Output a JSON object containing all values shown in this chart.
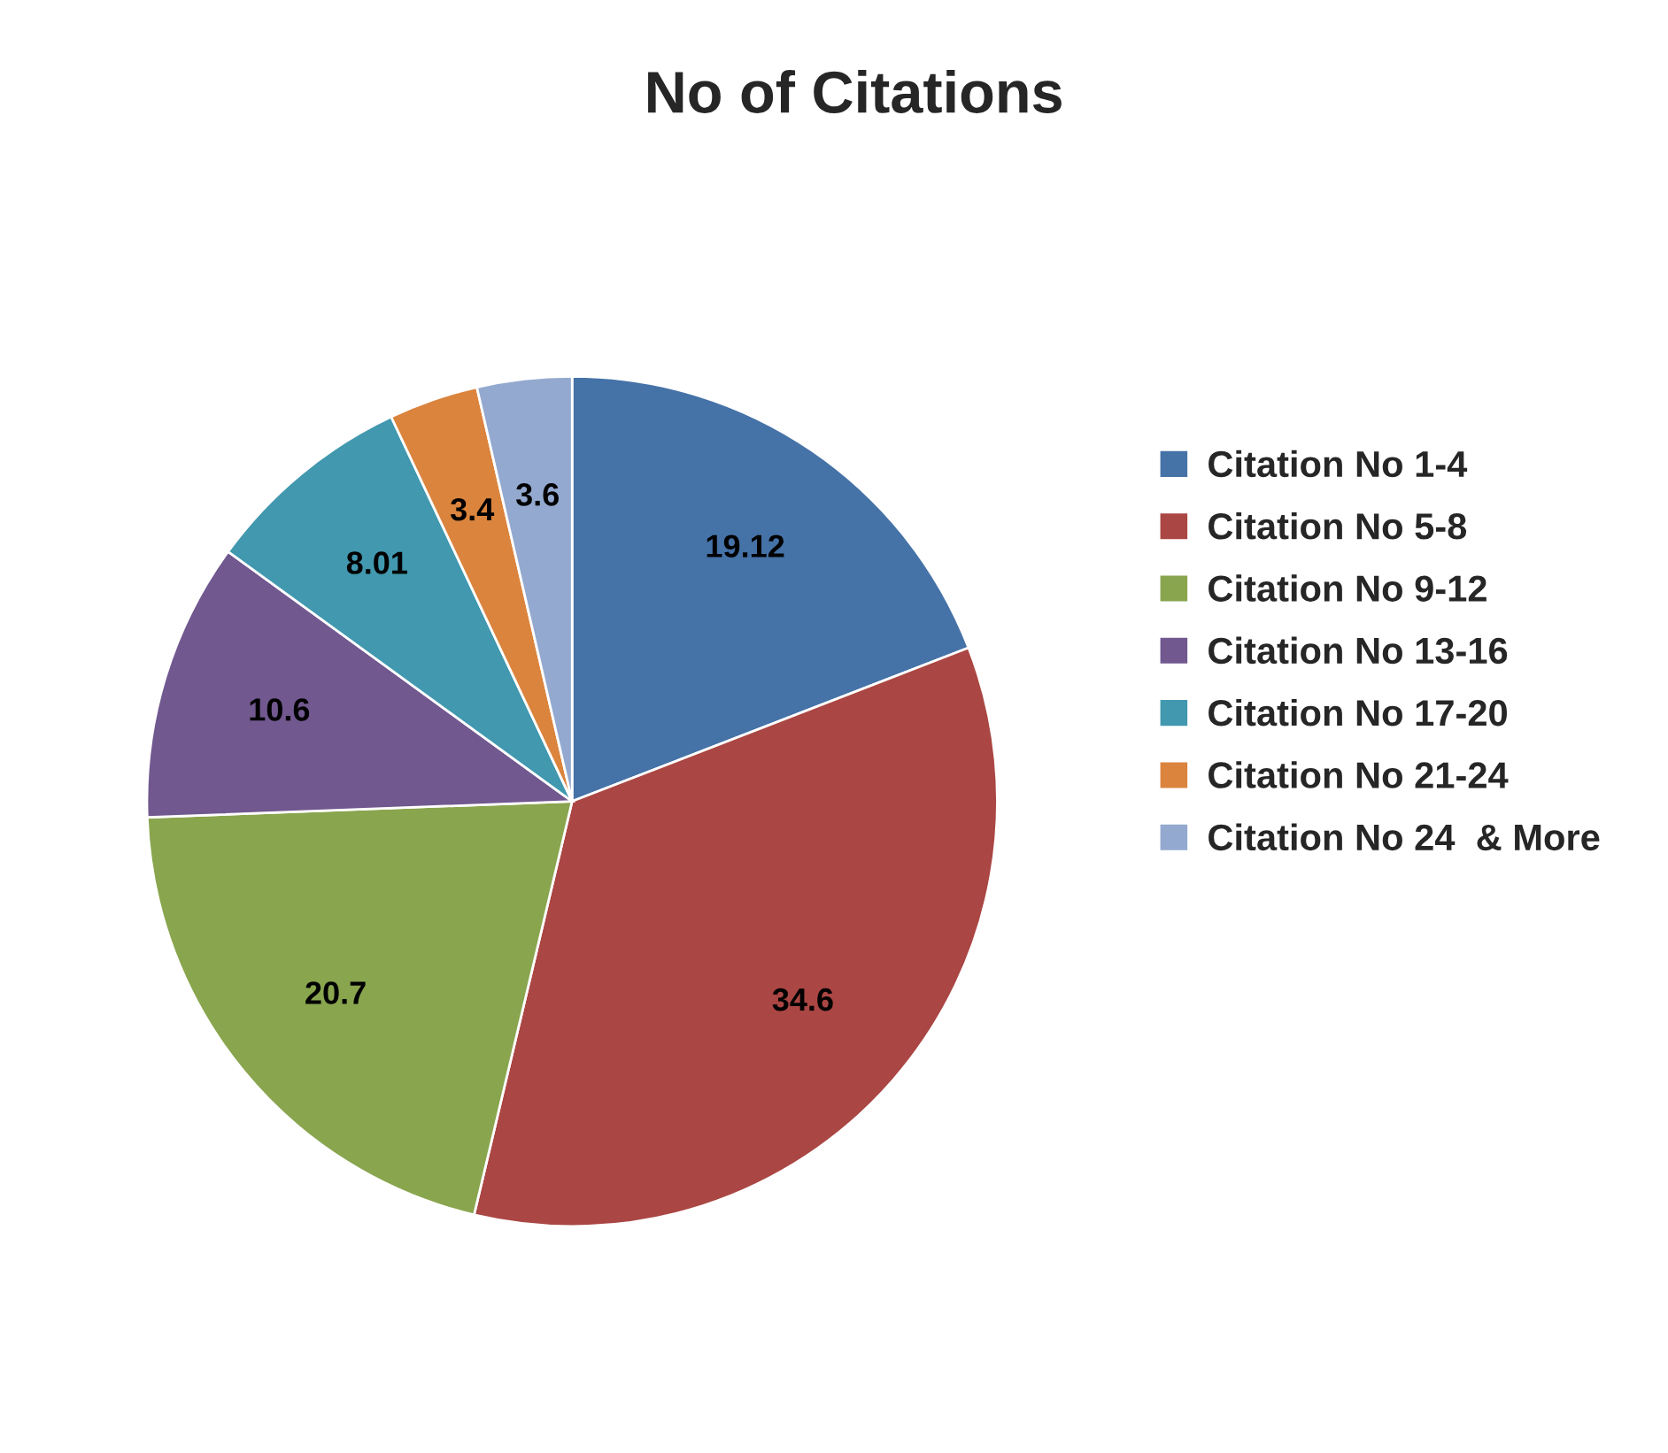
{
  "chart_data": {
    "type": "pie",
    "title": "No of Citations",
    "categories": [
      "Citation No 1-4",
      "Citation No 5-8",
      "Citation No 9-12",
      "Citation No 13-16",
      "Citation No 17-20",
      "Citation No 21-24",
      "Citation No 24  & More"
    ],
    "values": [
      19.12,
      34.6,
      20.7,
      10.6,
      8.01,
      3.4,
      3.6
    ],
    "colors": [
      "#4572a7",
      "#aa4643",
      "#89a54e",
      "#71588f",
      "#4198af",
      "#db843d",
      "#93a9cf"
    ],
    "data_labels": true,
    "legend": "right"
  }
}
